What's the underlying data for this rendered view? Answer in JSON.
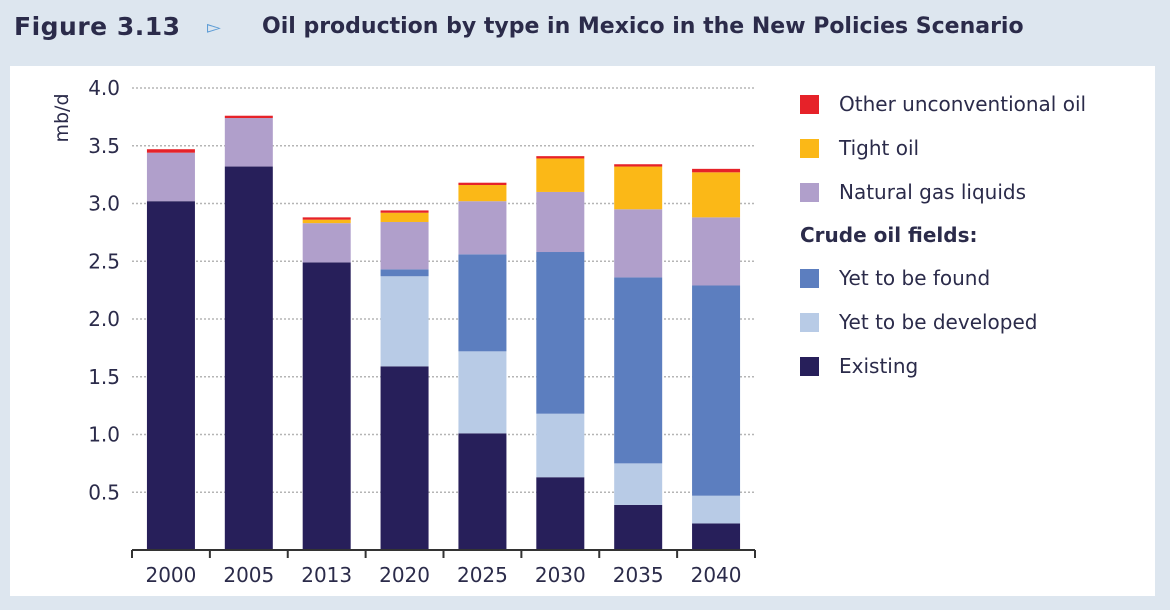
{
  "figure": {
    "label": "Figure 3.13",
    "arrow": "▻",
    "title": "Oil production by type in Mexico in the New Policies Scenario"
  },
  "legend": {
    "items_top": [
      {
        "label": "Other unconventional oil",
        "color": "#e62229"
      },
      {
        "label": "Tight oil",
        "color": "#fbb817"
      },
      {
        "label": "Natural gas liquids",
        "color": "#b09fcb"
      }
    ],
    "header": "Crude oil fields:",
    "items_bottom": [
      {
        "label": "Yet to be found",
        "color": "#5c7ebf"
      },
      {
        "label": "Yet to be developed",
        "color": "#b8cbe6"
      },
      {
        "label": "Existing",
        "color": "#271f5a"
      }
    ]
  },
  "chart_data": {
    "type": "bar",
    "stacked": true,
    "title": "Oil production by type in Mexico in the New Policies Scenario",
    "xlabel": "",
    "ylabel": "mb/d",
    "ylim": [
      0,
      4.0
    ],
    "yticks": [
      "0.5",
      "1.0",
      "1.5",
      "2.0",
      "2.5",
      "3.0",
      "3.5",
      "4.0"
    ],
    "grid": true,
    "categories": [
      "2000",
      "2005",
      "2013",
      "2020",
      "2025",
      "2030",
      "2035",
      "2040"
    ],
    "series": [
      {
        "name": "Existing",
        "color": "#271f5a",
        "values": [
          3.02,
          3.32,
          2.49,
          1.59,
          1.01,
          0.63,
          0.39,
          0.23
        ]
      },
      {
        "name": "Yet to be developed",
        "color": "#b8cbe6",
        "values": [
          0,
          0,
          0,
          0.78,
          0.71,
          0.55,
          0.36,
          0.24
        ]
      },
      {
        "name": "Yet to be found",
        "color": "#5c7ebf",
        "values": [
          0,
          0,
          0,
          0.06,
          0.84,
          1.4,
          1.61,
          1.82
        ]
      },
      {
        "name": "Natural gas liquids",
        "color": "#b09fcb",
        "values": [
          0.42,
          0.42,
          0.34,
          0.41,
          0.46,
          0.52,
          0.59,
          0.59
        ]
      },
      {
        "name": "Tight oil",
        "color": "#fbb817",
        "values": [
          0,
          0,
          0.03,
          0.08,
          0.14,
          0.29,
          0.37,
          0.39
        ]
      },
      {
        "name": "Other unconventional oil",
        "color": "#e62229",
        "values": [
          0.03,
          0.02,
          0.02,
          0.02,
          0.02,
          0.02,
          0.02,
          0.03
        ]
      }
    ]
  }
}
